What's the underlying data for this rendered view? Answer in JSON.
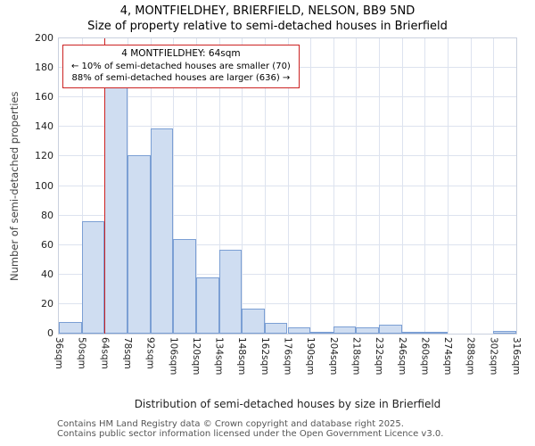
{
  "title": "4, MONTFIELDHEY, BRIERFIELD, NELSON, BB9 5ND",
  "subtitle": "Size of property relative to semi-detached houses in Brierfield",
  "annotation": {
    "line1": "4 MONTFIELDHEY: 64sqm",
    "line2": "← 10% of semi-detached houses are smaller (70)",
    "line3": "88% of semi-detached houses are larger (636) →"
  },
  "footer": {
    "line1": "Contains HM Land Registry data © Crown copyright and database right 2025.",
    "line2": "Contains public sector information licensed under the Open Government Licence v3.0."
  },
  "chart_data": {
    "type": "bar",
    "title": "4, MONTFIELDHEY, BRIERFIELD, NELSON, BB9 5ND — Size of property relative to semi-detached houses in Brierfield",
    "xlabel": "Distribution of semi-detached houses by size in Brierfield",
    "ylabel": "Number of semi-detached properties",
    "bin_start": 36,
    "bin_width": 14,
    "categories": [
      "36sqm",
      "50sqm",
      "64sqm",
      "78sqm",
      "92sqm",
      "106sqm",
      "120sqm",
      "134sqm",
      "148sqm",
      "162sqm",
      "176sqm",
      "190sqm",
      "204sqm",
      "218sqm",
      "232sqm",
      "246sqm",
      "260sqm",
      "274sqm",
      "288sqm",
      "302sqm",
      "316sqm"
    ],
    "values": [
      8,
      76,
      167,
      121,
      139,
      64,
      38,
      57,
      17,
      7,
      4,
      1,
      5,
      4,
      6,
      1,
      1,
      0,
      0,
      2
    ],
    "ylim": [
      0,
      200
    ],
    "ytick_step": 20,
    "grid": true,
    "legend": "none",
    "marker_value": 64,
    "colors": {
      "bar_fill": "#cfddf1",
      "bar_border": "#7b9fd4",
      "marker": "#cc2222",
      "grid": "#dde3ef"
    }
  }
}
